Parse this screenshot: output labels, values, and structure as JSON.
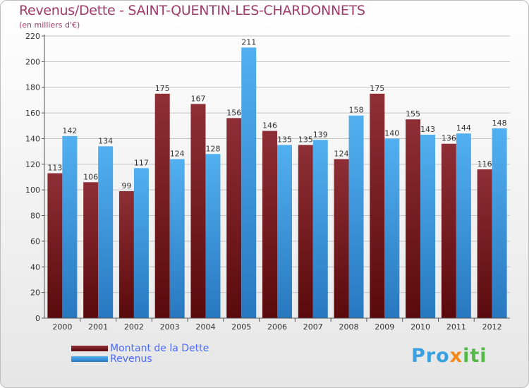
{
  "title": "Revenus/Dette - SAINT-QUENTIN-LES-CHARDONNETS",
  "subtitle": "(en milliers d'€)",
  "logo": "Proxiti",
  "chart_data": {
    "type": "bar",
    "title": "Revenus/Dette - SAINT-QUENTIN-LES-CHARDONNETS",
    "ylabel": "(en milliers d'€)",
    "xlabel": "",
    "ylim": [
      0,
      220
    ],
    "yticks": [
      0,
      20,
      40,
      60,
      80,
      100,
      120,
      140,
      160,
      180,
      200,
      220
    ],
    "grid": true,
    "legend_position": "bottom-left",
    "categories": [
      "2000",
      "2001",
      "2002",
      "2003",
      "2004",
      "2005",
      "2006",
      "2007",
      "2008",
      "2009",
      "2010",
      "2011",
      "2012"
    ],
    "series": [
      {
        "name": "Montant de la Dette",
        "color": "#7a1a22",
        "values": [
          113,
          106,
          99,
          175,
          167,
          156,
          146,
          135,
          124,
          175,
          155,
          136,
          116
        ]
      },
      {
        "name": "Revenus",
        "color": "#3a9ce0",
        "values": [
          142,
          134,
          117,
          124,
          128,
          211,
          135,
          139,
          158,
          140,
          143,
          144,
          148
        ]
      }
    ]
  }
}
